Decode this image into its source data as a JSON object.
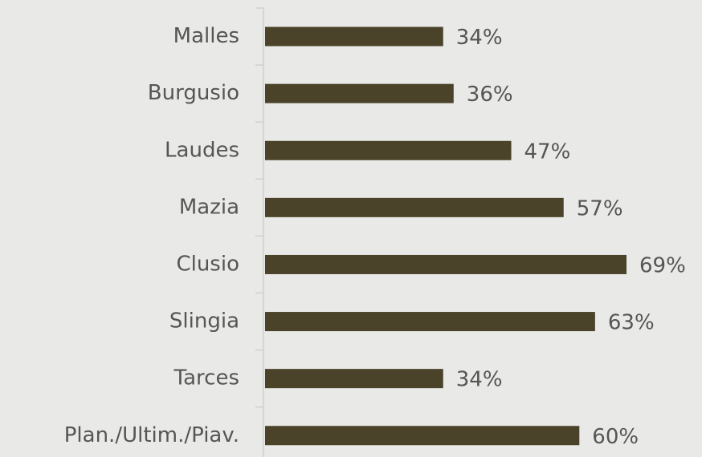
{
  "chart_data": {
    "type": "bar",
    "orientation": "horizontal",
    "categories": [
      "Malles",
      "Burgusio",
      "Laudes",
      "Mazia",
      "Clusio",
      "Slingia",
      "Tarces",
      "Plan./Ultim./Piav."
    ],
    "values": [
      34,
      36,
      47,
      57,
      69,
      63,
      34,
      60
    ],
    "value_labels": [
      "34%",
      "36%",
      "47%",
      "57%",
      "69%",
      "63%",
      "34%",
      "60%"
    ],
    "color": "#4a4229"
  }
}
